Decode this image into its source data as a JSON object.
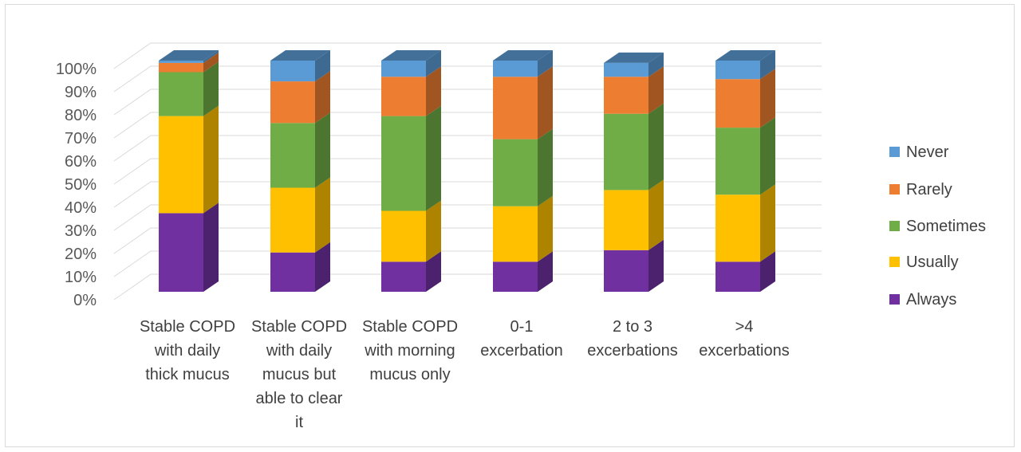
{
  "chart_data": {
    "type": "bar",
    "stacked": true,
    "percent": true,
    "style": "3d-stacked-column",
    "categories": [
      [
        "Stable COPD",
        "with daily",
        "thick mucus"
      ],
      [
        "Stable COPD",
        "with daily",
        "mucus but",
        "able to clear",
        "it"
      ],
      [
        "Stable COPD",
        "with morning",
        "mucus only"
      ],
      [
        "0-1",
        "excerbation"
      ],
      [
        "2 to 3",
        "excerbations"
      ],
      [
        ">4",
        "excerbations"
      ]
    ],
    "series": [
      {
        "name": "Always",
        "color": "#7030a0",
        "values": [
          34,
          17,
          13,
          13,
          18,
          13
        ]
      },
      {
        "name": "Usually",
        "color": "#ffc000",
        "values": [
          42,
          28,
          22,
          24,
          26,
          29
        ]
      },
      {
        "name": "Sometimes",
        "color": "#70ad47",
        "values": [
          19,
          28,
          41,
          29,
          33,
          29
        ]
      },
      {
        "name": "Rarely",
        "color": "#ed7d31",
        "values": [
          4,
          18,
          17,
          27,
          16,
          21
        ]
      },
      {
        "name": "Never",
        "color": "#5b9bd5",
        "values": [
          1,
          9,
          7,
          7,
          6,
          8
        ]
      }
    ],
    "y_ticks": [
      "0%",
      "10%",
      "20%",
      "30%",
      "40%",
      "50%",
      "60%",
      "70%",
      "80%",
      "90%",
      "100%"
    ],
    "ylim": [
      0,
      100
    ],
    "grid": true,
    "legend_position": "right",
    "legend_order": [
      "Never",
      "Rarely",
      "Sometimes",
      "Usually",
      "Always"
    ]
  }
}
